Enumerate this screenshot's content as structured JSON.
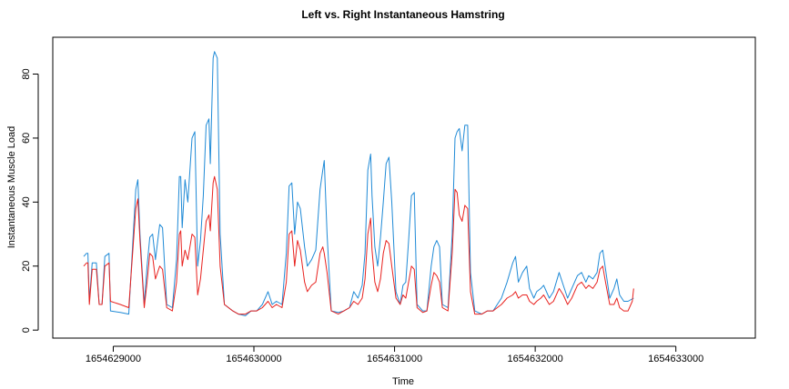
{
  "chart_data": {
    "type": "line",
    "title": "Left vs. Right Instantaneous Hamstring",
    "xlabel": "Time",
    "ylabel": "Instantaneous Muscle Load",
    "xlim": [
      1654628570,
      1654633565
    ],
    "ylim": [
      -2.5,
      91.5
    ],
    "x_ticks": [
      1654629000,
      1654630000,
      1654631000,
      1654632000,
      1654633000
    ],
    "x_tick_labels": [
      "1654629000",
      "1654630000",
      "1654631000",
      "1654632000",
      "1654633000"
    ],
    "y_ticks": [
      0,
      20,
      40,
      60,
      80
    ],
    "y_tick_labels": [
      "0",
      "20",
      "40",
      "60",
      "80"
    ],
    "grid": false,
    "series": [
      {
        "name": "blue",
        "color": "#1f8ad6",
        "points": [
          [
            1654628790,
            23
          ],
          [
            1654628810,
            24
          ],
          [
            1654628820,
            24
          ],
          [
            1654628830,
            9
          ],
          [
            1654628850,
            21
          ],
          [
            1654628880,
            21
          ],
          [
            1654628900,
            8
          ],
          [
            1654628920,
            8
          ],
          [
            1654628940,
            23
          ],
          [
            1654628970,
            24
          ],
          [
            1654628980,
            6
          ],
          [
            1654629050,
            5.5
          ],
          [
            1654629110,
            5
          ],
          [
            1654629160,
            44
          ],
          [
            1654629175,
            47
          ],
          [
            1654629190,
            30
          ],
          [
            1654629220,
            8
          ],
          [
            1654629240,
            20
          ],
          [
            1654629260,
            29
          ],
          [
            1654629280,
            30
          ],
          [
            1654629300,
            22
          ],
          [
            1654629330,
            33
          ],
          [
            1654629350,
            32
          ],
          [
            1654629380,
            8
          ],
          [
            1654629420,
            7
          ],
          [
            1654629450,
            22
          ],
          [
            1654629470,
            48
          ],
          [
            1654629480,
            48
          ],
          [
            1654629490,
            32
          ],
          [
            1654629510,
            47
          ],
          [
            1654629530,
            40
          ],
          [
            1654629560,
            60
          ],
          [
            1654629580,
            62
          ],
          [
            1654629600,
            20
          ],
          [
            1654629620,
            28
          ],
          [
            1654629640,
            42
          ],
          [
            1654629660,
            64
          ],
          [
            1654629680,
            66
          ],
          [
            1654629690,
            52
          ],
          [
            1654629710,
            85
          ],
          [
            1654629720,
            87
          ],
          [
            1654629740,
            85
          ],
          [
            1654629760,
            30
          ],
          [
            1654629790,
            8
          ],
          [
            1654629850,
            6
          ],
          [
            1654629890,
            5
          ],
          [
            1654629940,
            4.5
          ],
          [
            1654629980,
            6
          ],
          [
            1654630020,
            6
          ],
          [
            1654630060,
            8
          ],
          [
            1654630100,
            12
          ],
          [
            1654630130,
            8
          ],
          [
            1654630160,
            9
          ],
          [
            1654630200,
            8
          ],
          [
            1654630230,
            24
          ],
          [
            1654630250,
            45
          ],
          [
            1654630270,
            46
          ],
          [
            1654630290,
            30
          ],
          [
            1654630310,
            40
          ],
          [
            1654630330,
            38
          ],
          [
            1654630360,
            26
          ],
          [
            1654630380,
            20
          ],
          [
            1654630410,
            22
          ],
          [
            1654630440,
            25
          ],
          [
            1654630470,
            44
          ],
          [
            1654630490,
            50
          ],
          [
            1654630500,
            53
          ],
          [
            1654630520,
            30
          ],
          [
            1654630550,
            6
          ],
          [
            1654630600,
            5.5
          ],
          [
            1654630640,
            6
          ],
          [
            1654630680,
            7
          ],
          [
            1654630710,
            12
          ],
          [
            1654630740,
            10
          ],
          [
            1654630770,
            14
          ],
          [
            1654630790,
            24
          ],
          [
            1654630810,
            50
          ],
          [
            1654630830,
            55
          ],
          [
            1654630840,
            42
          ],
          [
            1654630860,
            26
          ],
          [
            1654630880,
            20
          ],
          [
            1654630900,
            29
          ],
          [
            1654630920,
            40
          ],
          [
            1654630940,
            52
          ],
          [
            1654630960,
            54
          ],
          [
            1654630980,
            40
          ],
          [
            1654631010,
            12
          ],
          [
            1654631040,
            8
          ],
          [
            1654631060,
            14
          ],
          [
            1654631080,
            15
          ],
          [
            1654631100,
            28
          ],
          [
            1654631120,
            42
          ],
          [
            1654631140,
            43
          ],
          [
            1654631160,
            8
          ],
          [
            1654631200,
            6
          ],
          [
            1654631230,
            6
          ],
          [
            1654631260,
            20
          ],
          [
            1654631280,
            26
          ],
          [
            1654631300,
            28
          ],
          [
            1654631320,
            26
          ],
          [
            1654631340,
            8
          ],
          [
            1654631380,
            7
          ],
          [
            1654631410,
            30
          ],
          [
            1654631430,
            60
          ],
          [
            1654631445,
            62
          ],
          [
            1654631460,
            63
          ],
          [
            1654631480,
            56
          ],
          [
            1654631500,
            64
          ],
          [
            1654631520,
            64
          ],
          [
            1654631540,
            18
          ],
          [
            1654631570,
            6
          ],
          [
            1654631620,
            5
          ],
          [
            1654631660,
            6
          ],
          [
            1654631700,
            6
          ],
          [
            1654631730,
            8
          ],
          [
            1654631760,
            10
          ],
          [
            1654631800,
            15
          ],
          [
            1654631840,
            21
          ],
          [
            1654631860,
            23
          ],
          [
            1654631880,
            15
          ],
          [
            1654631910,
            18
          ],
          [
            1654631940,
            20
          ],
          [
            1654631960,
            13
          ],
          [
            1654631990,
            10
          ],
          [
            1654632010,
            12
          ],
          [
            1654632040,
            13
          ],
          [
            1654632060,
            14
          ],
          [
            1654632100,
            10
          ],
          [
            1654632130,
            12
          ],
          [
            1654632170,
            18
          ],
          [
            1654632200,
            14
          ],
          [
            1654632230,
            10
          ],
          [
            1654632260,
            13
          ],
          [
            1654632300,
            17
          ],
          [
            1654632330,
            18
          ],
          [
            1654632360,
            15
          ],
          [
            1654632380,
            17
          ],
          [
            1654632410,
            16
          ],
          [
            1654632440,
            18
          ],
          [
            1654632460,
            24
          ],
          [
            1654632480,
            25
          ],
          [
            1654632500,
            19
          ],
          [
            1654632530,
            10
          ],
          [
            1654632560,
            13
          ],
          [
            1654632580,
            16
          ],
          [
            1654632600,
            11
          ],
          [
            1654632630,
            9
          ],
          [
            1654632660,
            9
          ],
          [
            1654632700,
            10
          ]
        ]
      },
      {
        "name": "red",
        "color": "#e8221f",
        "points": [
          [
            1654628790,
            20
          ],
          [
            1654628810,
            21
          ],
          [
            1654628820,
            21
          ],
          [
            1654628830,
            8
          ],
          [
            1654628850,
            19
          ],
          [
            1654628880,
            19
          ],
          [
            1654628900,
            8
          ],
          [
            1654628920,
            8
          ],
          [
            1654628940,
            20
          ],
          [
            1654628970,
            21
          ],
          [
            1654628980,
            9
          ],
          [
            1654629050,
            8
          ],
          [
            1654629110,
            7
          ],
          [
            1654629160,
            38
          ],
          [
            1654629175,
            41
          ],
          [
            1654629190,
            28
          ],
          [
            1654629220,
            7
          ],
          [
            1654629240,
            15
          ],
          [
            1654629260,
            24
          ],
          [
            1654629280,
            23
          ],
          [
            1654629300,
            16
          ],
          [
            1654629330,
            20
          ],
          [
            1654629350,
            19
          ],
          [
            1654629380,
            7
          ],
          [
            1654629420,
            6
          ],
          [
            1654629450,
            15
          ],
          [
            1654629470,
            30
          ],
          [
            1654629480,
            31
          ],
          [
            1654629490,
            20
          ],
          [
            1654629510,
            25
          ],
          [
            1654629530,
            22
          ],
          [
            1654629560,
            30
          ],
          [
            1654629580,
            29
          ],
          [
            1654629600,
            11
          ],
          [
            1654629620,
            16
          ],
          [
            1654629640,
            25
          ],
          [
            1654629660,
            34
          ],
          [
            1654629680,
            36
          ],
          [
            1654629690,
            31
          ],
          [
            1654629710,
            46
          ],
          [
            1654629720,
            48
          ],
          [
            1654629740,
            44
          ],
          [
            1654629760,
            20
          ],
          [
            1654629790,
            8
          ],
          [
            1654629850,
            6
          ],
          [
            1654629890,
            5
          ],
          [
            1654629940,
            5
          ],
          [
            1654629980,
            6
          ],
          [
            1654630020,
            6
          ],
          [
            1654630060,
            7
          ],
          [
            1654630100,
            9
          ],
          [
            1654630130,
            7
          ],
          [
            1654630160,
            8
          ],
          [
            1654630200,
            7
          ],
          [
            1654630230,
            15
          ],
          [
            1654630250,
            30
          ],
          [
            1654630270,
            31
          ],
          [
            1654630290,
            20
          ],
          [
            1654630310,
            28
          ],
          [
            1654630330,
            25
          ],
          [
            1654630360,
            15
          ],
          [
            1654630380,
            12
          ],
          [
            1654630410,
            14
          ],
          [
            1654630440,
            15
          ],
          [
            1654630470,
            24
          ],
          [
            1654630490,
            26
          ],
          [
            1654630500,
            24
          ],
          [
            1654630520,
            18
          ],
          [
            1654630550,
            6
          ],
          [
            1654630600,
            5
          ],
          [
            1654630640,
            6
          ],
          [
            1654630680,
            7
          ],
          [
            1654630710,
            9
          ],
          [
            1654630740,
            8
          ],
          [
            1654630770,
            10
          ],
          [
            1654630790,
            16
          ],
          [
            1654630810,
            30
          ],
          [
            1654630830,
            35
          ],
          [
            1654630840,
            25
          ],
          [
            1654630860,
            15
          ],
          [
            1654630880,
            12
          ],
          [
            1654630900,
            16
          ],
          [
            1654630920,
            24
          ],
          [
            1654630940,
            28
          ],
          [
            1654630960,
            27
          ],
          [
            1654630980,
            20
          ],
          [
            1654631010,
            10
          ],
          [
            1654631040,
            8
          ],
          [
            1654631060,
            11
          ],
          [
            1654631080,
            10
          ],
          [
            1654631100,
            15
          ],
          [
            1654631120,
            20
          ],
          [
            1654631140,
            19
          ],
          [
            1654631160,
            7
          ],
          [
            1654631200,
            5.5
          ],
          [
            1654631230,
            6
          ],
          [
            1654631260,
            14
          ],
          [
            1654631280,
            18
          ],
          [
            1654631300,
            17
          ],
          [
            1654631320,
            15
          ],
          [
            1654631340,
            7
          ],
          [
            1654631380,
            6
          ],
          [
            1654631410,
            24
          ],
          [
            1654631430,
            44
          ],
          [
            1654631445,
            43
          ],
          [
            1654631460,
            36
          ],
          [
            1654631480,
            34
          ],
          [
            1654631500,
            39
          ],
          [
            1654631520,
            38
          ],
          [
            1654631540,
            12
          ],
          [
            1654631570,
            5
          ],
          [
            1654631620,
            5
          ],
          [
            1654631660,
            6
          ],
          [
            1654631700,
            6
          ],
          [
            1654631730,
            7
          ],
          [
            1654631760,
            8
          ],
          [
            1654631800,
            10
          ],
          [
            1654631840,
            11
          ],
          [
            1654631860,
            12
          ],
          [
            1654631880,
            10
          ],
          [
            1654631910,
            11
          ],
          [
            1654631940,
            11
          ],
          [
            1654631960,
            9
          ],
          [
            1654631990,
            8
          ],
          [
            1654632010,
            9
          ],
          [
            1654632040,
            10
          ],
          [
            1654632060,
            11
          ],
          [
            1654632100,
            8
          ],
          [
            1654632130,
            9
          ],
          [
            1654632170,
            13
          ],
          [
            1654632200,
            11
          ],
          [
            1654632230,
            8
          ],
          [
            1654632260,
            10
          ],
          [
            1654632300,
            14
          ],
          [
            1654632330,
            15
          ],
          [
            1654632360,
            13
          ],
          [
            1654632380,
            14
          ],
          [
            1654632410,
            13
          ],
          [
            1654632440,
            15
          ],
          [
            1654632460,
            19
          ],
          [
            1654632480,
            20
          ],
          [
            1654632500,
            15
          ],
          [
            1654632530,
            8
          ],
          [
            1654632560,
            8
          ],
          [
            1654632580,
            10
          ],
          [
            1654632600,
            7
          ],
          [
            1654632630,
            6
          ],
          [
            1654632660,
            6
          ],
          [
            1654632690,
            9
          ],
          [
            1654632700,
            13
          ]
        ]
      }
    ]
  }
}
